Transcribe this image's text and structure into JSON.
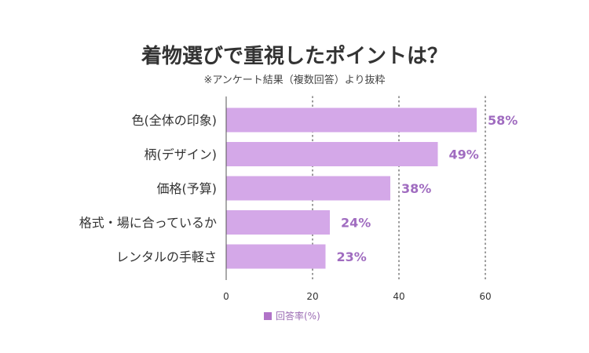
{
  "chart_data": {
    "type": "bar",
    "orientation": "horizontal",
    "title": "着物選びで重視したポイントは？",
    "subtitle": "※アンケート結果（複数回答）より抜粋",
    "categories": [
      "色(全体の印象)",
      "柄(デザイン)",
      "価格(予算)",
      "格式・場に合っているか",
      "レンタルの手軽さ"
    ],
    "series": [
      {
        "name": "回答率(%)",
        "values": [
          58,
          49,
          38,
          24,
          23
        ],
        "labels": [
          "58%",
          "49%",
          "38%",
          "24%",
          "23%"
        ]
      }
    ],
    "xlim": [
      0,
      60
    ],
    "xticks": [
      0,
      20,
      40,
      60
    ],
    "xtick_labels": [
      "0",
      "20",
      "40",
      "60"
    ],
    "grid": "vertical dotted",
    "legend_position": "bottom",
    "colors": {
      "bar": "#d4a8e8",
      "value_label": "#a06cc0",
      "legend_marker": "#b173c8",
      "axis": "#555555",
      "grid": "#555555"
    }
  }
}
